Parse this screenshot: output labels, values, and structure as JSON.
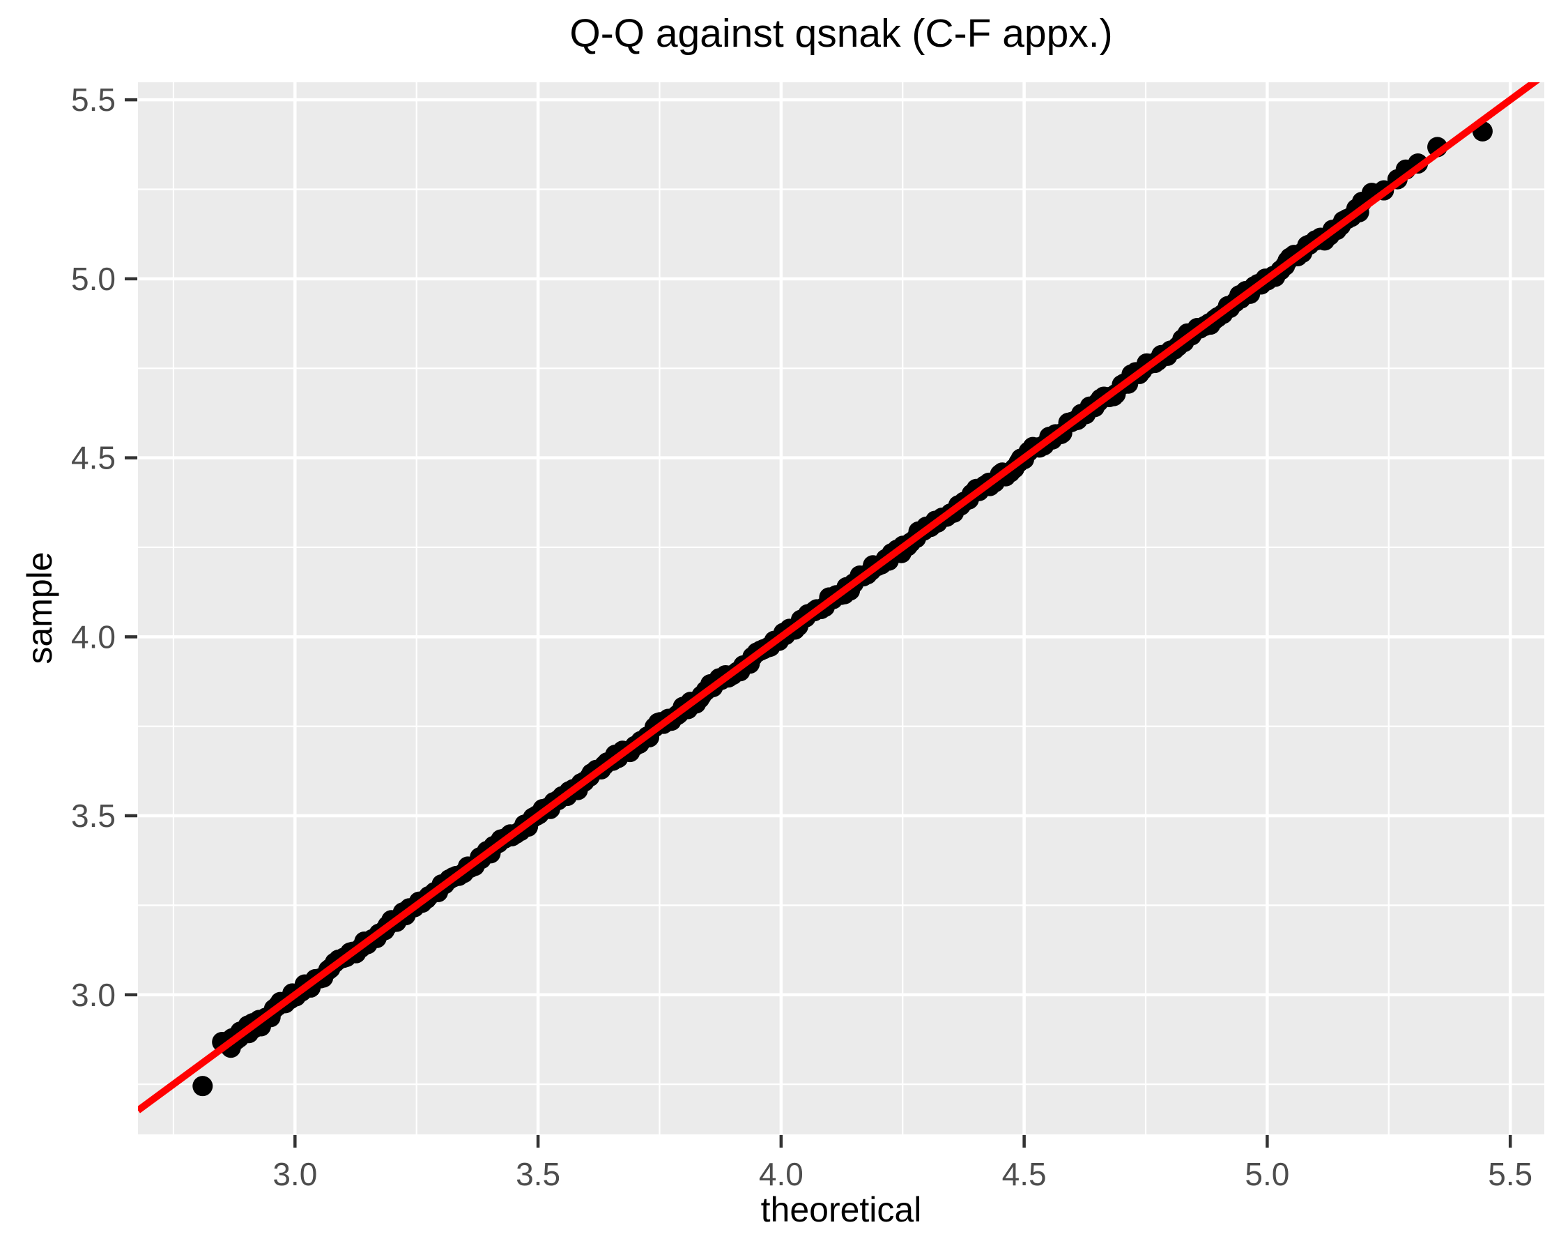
{
  "title": "Q-Q against qsnak (C-F appx.)",
  "axes": {
    "x_label": "theoretical",
    "y_label": "sample"
  },
  "colors": {
    "figure_bg": "#FFFFFF",
    "panel_bg": "#EBEBEB",
    "grid_major": "#FFFFFF",
    "grid_minor": "#FFFFFF",
    "tick_mark": "#333333",
    "tick_label": "#4D4D4D",
    "title_text": "#000000",
    "axis_title_text": "#000000",
    "point": "#000000",
    "reference_line": "#FF0000"
  },
  "chart_data": {
    "type": "scatter",
    "title": "Q-Q against qsnak (C-F appx.)",
    "xlabel": "theoretical",
    "ylabel": "sample",
    "xlim": [
      2.677,
      5.57
    ],
    "ylim": [
      2.61,
      5.549
    ],
    "x_ticks": [
      3.0,
      3.5,
      4.0,
      4.5,
      5.0,
      5.5
    ],
    "x_tick_labels": [
      "3.0",
      "3.5",
      "4.0",
      "4.5",
      "5.0",
      "5.5"
    ],
    "y_ticks": [
      3.0,
      3.5,
      4.0,
      4.5,
      5.0,
      5.5
    ],
    "y_tick_labels": [
      "3.0",
      "3.5",
      "4.0",
      "4.5",
      "5.0",
      "5.5"
    ],
    "x_minor_ticks": [
      2.75,
      3.25,
      3.75,
      4.25,
      4.75,
      5.25
    ],
    "y_minor_ticks": [
      2.75,
      3.25,
      3.75,
      4.25,
      4.75,
      5.25
    ],
    "grid": "on",
    "legend": "none",
    "reference_line": {
      "slope": 1,
      "intercept": 0,
      "x1": 2.677,
      "y1": 2.677,
      "x2": 5.565,
      "y2": 5.565
    },
    "band": {
      "description": "dense run of quantile points lying on the y=x reference line",
      "x_start": 2.855,
      "x_end": 5.19,
      "n": 300,
      "x_jitter": 0.006,
      "y_jitter": 0.02,
      "seed": 42
    },
    "outlier_points": [
      [
        2.81,
        2.745
      ]
    ],
    "notable_points": [
      [
        2.85,
        2.868
      ],
      [
        2.868,
        2.852
      ],
      [
        2.885,
        2.88
      ],
      [
        2.905,
        2.893
      ],
      [
        2.93,
        2.912
      ],
      [
        5.195,
        5.215
      ],
      [
        5.215,
        5.24
      ],
      [
        5.24,
        5.247
      ],
      [
        5.268,
        5.278
      ],
      [
        5.285,
        5.305
      ],
      [
        5.31,
        5.322
      ],
      [
        5.35,
        5.368
      ],
      [
        5.443,
        5.412
      ]
    ],
    "point_radius_px": 14.5
  }
}
